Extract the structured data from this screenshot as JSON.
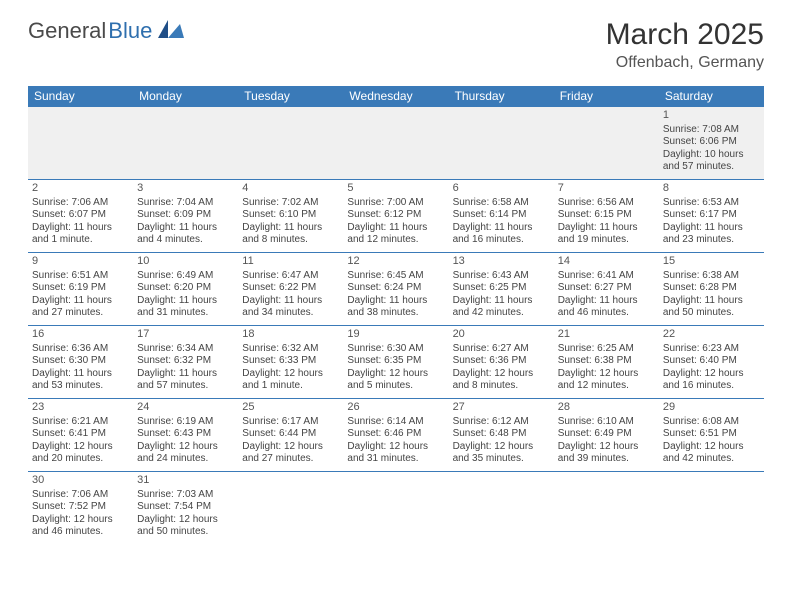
{
  "brand": {
    "general": "General",
    "blue": "Blue"
  },
  "title": {
    "month": "March 2025",
    "location": "Offenbach, Germany"
  },
  "colors": {
    "header_bg": "#3a7ab8",
    "header_text": "#ffffff",
    "border": "#3a7ab8",
    "empty_bg": "#f0f0f0",
    "text": "#444444",
    "brand_blue": "#2f6fae"
  },
  "dayNames": [
    "Sunday",
    "Monday",
    "Tuesday",
    "Wednesday",
    "Thursday",
    "Friday",
    "Saturday"
  ],
  "weeks": [
    [
      null,
      null,
      null,
      null,
      null,
      null,
      {
        "num": "1",
        "sunrise": "Sunrise: 7:08 AM",
        "sunset": "Sunset: 6:06 PM",
        "daylight1": "Daylight: 10 hours",
        "daylight2": "and 57 minutes."
      }
    ],
    [
      {
        "num": "2",
        "sunrise": "Sunrise: 7:06 AM",
        "sunset": "Sunset: 6:07 PM",
        "daylight1": "Daylight: 11 hours",
        "daylight2": "and 1 minute."
      },
      {
        "num": "3",
        "sunrise": "Sunrise: 7:04 AM",
        "sunset": "Sunset: 6:09 PM",
        "daylight1": "Daylight: 11 hours",
        "daylight2": "and 4 minutes."
      },
      {
        "num": "4",
        "sunrise": "Sunrise: 7:02 AM",
        "sunset": "Sunset: 6:10 PM",
        "daylight1": "Daylight: 11 hours",
        "daylight2": "and 8 minutes."
      },
      {
        "num": "5",
        "sunrise": "Sunrise: 7:00 AM",
        "sunset": "Sunset: 6:12 PM",
        "daylight1": "Daylight: 11 hours",
        "daylight2": "and 12 minutes."
      },
      {
        "num": "6",
        "sunrise": "Sunrise: 6:58 AM",
        "sunset": "Sunset: 6:14 PM",
        "daylight1": "Daylight: 11 hours",
        "daylight2": "and 16 minutes."
      },
      {
        "num": "7",
        "sunrise": "Sunrise: 6:56 AM",
        "sunset": "Sunset: 6:15 PM",
        "daylight1": "Daylight: 11 hours",
        "daylight2": "and 19 minutes."
      },
      {
        "num": "8",
        "sunrise": "Sunrise: 6:53 AM",
        "sunset": "Sunset: 6:17 PM",
        "daylight1": "Daylight: 11 hours",
        "daylight2": "and 23 minutes."
      }
    ],
    [
      {
        "num": "9",
        "sunrise": "Sunrise: 6:51 AM",
        "sunset": "Sunset: 6:19 PM",
        "daylight1": "Daylight: 11 hours",
        "daylight2": "and 27 minutes."
      },
      {
        "num": "10",
        "sunrise": "Sunrise: 6:49 AM",
        "sunset": "Sunset: 6:20 PM",
        "daylight1": "Daylight: 11 hours",
        "daylight2": "and 31 minutes."
      },
      {
        "num": "11",
        "sunrise": "Sunrise: 6:47 AM",
        "sunset": "Sunset: 6:22 PM",
        "daylight1": "Daylight: 11 hours",
        "daylight2": "and 34 minutes."
      },
      {
        "num": "12",
        "sunrise": "Sunrise: 6:45 AM",
        "sunset": "Sunset: 6:24 PM",
        "daylight1": "Daylight: 11 hours",
        "daylight2": "and 38 minutes."
      },
      {
        "num": "13",
        "sunrise": "Sunrise: 6:43 AM",
        "sunset": "Sunset: 6:25 PM",
        "daylight1": "Daylight: 11 hours",
        "daylight2": "and 42 minutes."
      },
      {
        "num": "14",
        "sunrise": "Sunrise: 6:41 AM",
        "sunset": "Sunset: 6:27 PM",
        "daylight1": "Daylight: 11 hours",
        "daylight2": "and 46 minutes."
      },
      {
        "num": "15",
        "sunrise": "Sunrise: 6:38 AM",
        "sunset": "Sunset: 6:28 PM",
        "daylight1": "Daylight: 11 hours",
        "daylight2": "and 50 minutes."
      }
    ],
    [
      {
        "num": "16",
        "sunrise": "Sunrise: 6:36 AM",
        "sunset": "Sunset: 6:30 PM",
        "daylight1": "Daylight: 11 hours",
        "daylight2": "and 53 minutes."
      },
      {
        "num": "17",
        "sunrise": "Sunrise: 6:34 AM",
        "sunset": "Sunset: 6:32 PM",
        "daylight1": "Daylight: 11 hours",
        "daylight2": "and 57 minutes."
      },
      {
        "num": "18",
        "sunrise": "Sunrise: 6:32 AM",
        "sunset": "Sunset: 6:33 PM",
        "daylight1": "Daylight: 12 hours",
        "daylight2": "and 1 minute."
      },
      {
        "num": "19",
        "sunrise": "Sunrise: 6:30 AM",
        "sunset": "Sunset: 6:35 PM",
        "daylight1": "Daylight: 12 hours",
        "daylight2": "and 5 minutes."
      },
      {
        "num": "20",
        "sunrise": "Sunrise: 6:27 AM",
        "sunset": "Sunset: 6:36 PM",
        "daylight1": "Daylight: 12 hours",
        "daylight2": "and 8 minutes."
      },
      {
        "num": "21",
        "sunrise": "Sunrise: 6:25 AM",
        "sunset": "Sunset: 6:38 PM",
        "daylight1": "Daylight: 12 hours",
        "daylight2": "and 12 minutes."
      },
      {
        "num": "22",
        "sunrise": "Sunrise: 6:23 AM",
        "sunset": "Sunset: 6:40 PM",
        "daylight1": "Daylight: 12 hours",
        "daylight2": "and 16 minutes."
      }
    ],
    [
      {
        "num": "23",
        "sunrise": "Sunrise: 6:21 AM",
        "sunset": "Sunset: 6:41 PM",
        "daylight1": "Daylight: 12 hours",
        "daylight2": "and 20 minutes."
      },
      {
        "num": "24",
        "sunrise": "Sunrise: 6:19 AM",
        "sunset": "Sunset: 6:43 PM",
        "daylight1": "Daylight: 12 hours",
        "daylight2": "and 24 minutes."
      },
      {
        "num": "25",
        "sunrise": "Sunrise: 6:17 AM",
        "sunset": "Sunset: 6:44 PM",
        "daylight1": "Daylight: 12 hours",
        "daylight2": "and 27 minutes."
      },
      {
        "num": "26",
        "sunrise": "Sunrise: 6:14 AM",
        "sunset": "Sunset: 6:46 PM",
        "daylight1": "Daylight: 12 hours",
        "daylight2": "and 31 minutes."
      },
      {
        "num": "27",
        "sunrise": "Sunrise: 6:12 AM",
        "sunset": "Sunset: 6:48 PM",
        "daylight1": "Daylight: 12 hours",
        "daylight2": "and 35 minutes."
      },
      {
        "num": "28",
        "sunrise": "Sunrise: 6:10 AM",
        "sunset": "Sunset: 6:49 PM",
        "daylight1": "Daylight: 12 hours",
        "daylight2": "and 39 minutes."
      },
      {
        "num": "29",
        "sunrise": "Sunrise: 6:08 AM",
        "sunset": "Sunset: 6:51 PM",
        "daylight1": "Daylight: 12 hours",
        "daylight2": "and 42 minutes."
      }
    ],
    [
      {
        "num": "30",
        "sunrise": "Sunrise: 7:06 AM",
        "sunset": "Sunset: 7:52 PM",
        "daylight1": "Daylight: 12 hours",
        "daylight2": "and 46 minutes."
      },
      {
        "num": "31",
        "sunrise": "Sunrise: 7:03 AM",
        "sunset": "Sunset: 7:54 PM",
        "daylight1": "Daylight: 12 hours",
        "daylight2": "and 50 minutes."
      },
      null,
      null,
      null,
      null,
      null
    ]
  ]
}
